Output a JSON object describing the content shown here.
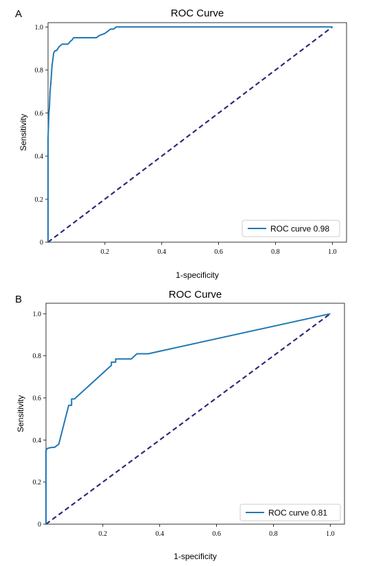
{
  "chart_data": [
    {
      "type": "line",
      "panel_label": "A",
      "title": "ROC Curve",
      "xlabel": "1-specificity",
      "ylabel": "Sensitivity",
      "xlim": [
        0,
        1.05
      ],
      "ylim": [
        0,
        1.02
      ],
      "xticks": [
        0.2,
        0.4,
        0.6,
        0.8,
        1.0
      ],
      "xtick_labels": [
        "0.2",
        "0.4",
        "0.6",
        "0.8",
        "1.0"
      ],
      "yticks": [
        0,
        0.2,
        0.4,
        0.6,
        0.8,
        1.0
      ],
      "ytick_labels": [
        "0",
        "0.2",
        "0.4",
        "0.6",
        "0.8",
        "1.0"
      ],
      "grid": false,
      "legend_position": "lower-right",
      "series": [
        {
          "name": "ROC curve 0.98",
          "color": "#1f77b4",
          "x": [
            0,
            0.0,
            0.003,
            0.005,
            0.007,
            0.01,
            0.012,
            0.014,
            0.017,
            0.02,
            0.025,
            0.03,
            0.04,
            0.05,
            0.06,
            0.07,
            0.08,
            0.085,
            0.09,
            0.1,
            0.12,
            0.15,
            0.17,
            0.18,
            0.2,
            0.21,
            0.22,
            0.23,
            0.24,
            0.245,
            0.26,
            0.3,
            0.5,
            0.7,
            0.9,
            1.0
          ],
          "y": [
            0,
            0.48,
            0.6,
            0.63,
            0.7,
            0.74,
            0.78,
            0.82,
            0.85,
            0.88,
            0.89,
            0.89,
            0.91,
            0.92,
            0.92,
            0.92,
            0.935,
            0.94,
            0.95,
            0.95,
            0.95,
            0.95,
            0.95,
            0.96,
            0.97,
            0.98,
            0.99,
            0.99,
            1.0,
            1.0,
            1.0,
            1.0,
            1.0,
            1.0,
            1.0,
            1.0
          ]
        },
        {
          "name": "",
          "color": "#2c2a7a",
          "style": "dashed",
          "x": [
            0,
            1.0
          ],
          "y": [
            0,
            1.0
          ]
        }
      ]
    },
    {
      "type": "line",
      "panel_label": "B",
      "title": "ROC Curve",
      "xlabel": "1-specificity",
      "ylabel": "Sensitivity",
      "xlim": [
        0,
        1.05
      ],
      "ylim": [
        0,
        1.05
      ],
      "xticks": [
        0.2,
        0.4,
        0.6,
        0.8,
        1.0
      ],
      "xtick_labels": [
        "0.2",
        "0.4",
        "0.6",
        "0.8",
        "1.0"
      ],
      "yticks": [
        0,
        0.2,
        0.4,
        0.6,
        0.8,
        1.0
      ],
      "ytick_labels": [
        "0",
        "0.2",
        "0.4",
        "0.6",
        "0.8",
        "1.0"
      ],
      "grid": false,
      "legend_position": "lower-right",
      "series": [
        {
          "name": "ROC curve 0.81",
          "color": "#1f77b4",
          "x": [
            0,
            0.0,
            0.005,
            0.02,
            0.03,
            0.045,
            0.08,
            0.08,
            0.09,
            0.09,
            0.1,
            0.23,
            0.23,
            0.245,
            0.245,
            0.3,
            0.32,
            0.36,
            1.0
          ],
          "y": [
            0,
            0.35,
            0.36,
            0.365,
            0.365,
            0.38,
            0.565,
            0.565,
            0.565,
            0.595,
            0.595,
            0.755,
            0.77,
            0.77,
            0.785,
            0.785,
            0.81,
            0.81,
            1.0
          ]
        },
        {
          "name": "",
          "color": "#2c2a7a",
          "style": "dashed",
          "x": [
            0,
            1.0
          ],
          "y": [
            0,
            1.0
          ]
        }
      ]
    }
  ]
}
